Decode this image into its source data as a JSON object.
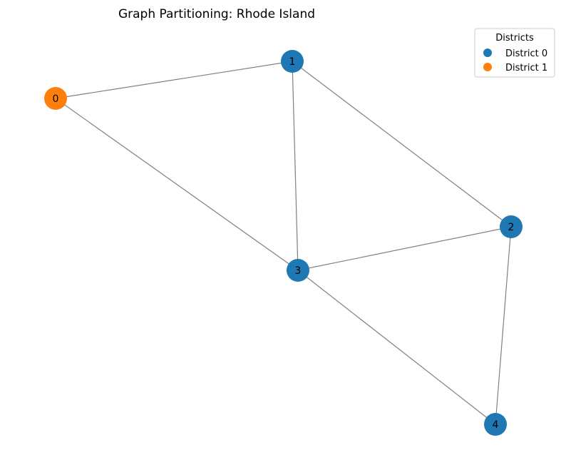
{
  "title": "Graph Partitioning: Rhode Island",
  "districts": [
    {
      "id": 0,
      "label": "District 0",
      "color": "#1f77b4"
    },
    {
      "id": 1,
      "label": "District 1",
      "color": "#ff7f0e"
    }
  ],
  "nodes": [
    {
      "id": "0",
      "label": "0",
      "district": 1
    },
    {
      "id": "1",
      "label": "1",
      "district": 0
    },
    {
      "id": "2",
      "label": "2",
      "district": 0
    },
    {
      "id": "3",
      "label": "3",
      "district": 0
    },
    {
      "id": "4",
      "label": "4",
      "district": 0
    }
  ],
  "edges": [
    [
      "0",
      "1"
    ],
    [
      "0",
      "3"
    ],
    [
      "1",
      "3"
    ],
    [
      "1",
      "2"
    ],
    [
      "2",
      "3"
    ],
    [
      "2",
      "4"
    ],
    [
      "3",
      "4"
    ]
  ],
  "legend": {
    "title": "Districts",
    "placement": "top-right"
  },
  "edge_color": "#808080"
}
